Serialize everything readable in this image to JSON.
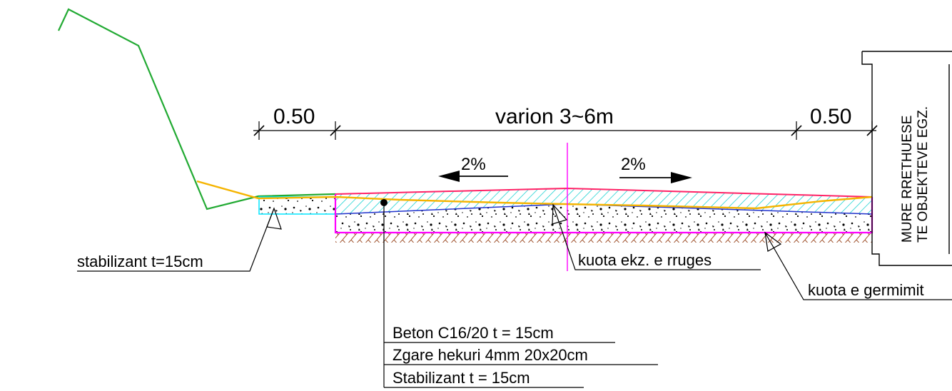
{
  "dimensions": {
    "left_shoulder": "0.50",
    "carriageway": "varion 3~6m",
    "right_shoulder": "0.50"
  },
  "slopes": {
    "left": "2%",
    "right": "2%"
  },
  "wall": {
    "line1": "MURE RRETHUESE",
    "line2": "TE OBJEKTEVE EGZ."
  },
  "labels": {
    "stabilizer": "stabilizant t=15cm",
    "existing_level": "kuota ekz. e rruges",
    "excavation_level": "kuota e germimit"
  },
  "layers": [
    "Beton C16/20 t = 15cm",
    "Zgare hekuri 4mm 20x20cm",
    "Stabilizant  t = 15cm"
  ],
  "colors": {
    "terrain": "#22aa33",
    "existing_road": "#f5b400",
    "concrete_outline": "#ff00ff",
    "concrete_top": "#ff2266",
    "hatch": "#00cccc",
    "layer_line": "#2233cc",
    "soil_hatch": "#a0522d"
  }
}
